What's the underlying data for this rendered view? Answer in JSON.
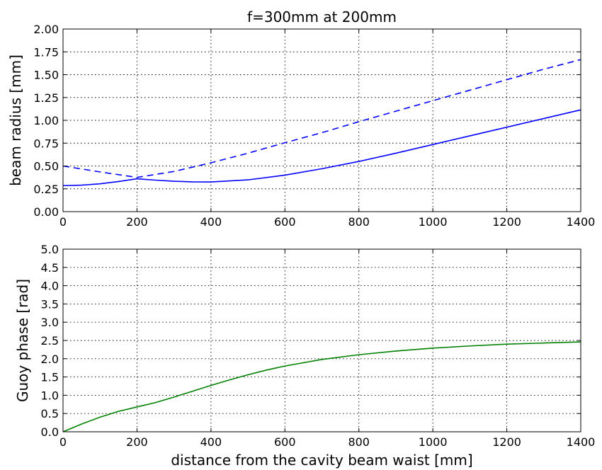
{
  "chart_data": [
    {
      "type": "line",
      "title": "f=300mm at 200mm",
      "xlabel": "",
      "ylabel": "beam radius [mm]",
      "xlim": [
        0,
        1400
      ],
      "ylim": [
        0,
        2.0
      ],
      "grid": true,
      "xticks": [
        "0",
        "200",
        "400",
        "600",
        "800",
        "1000",
        "1200",
        "1400"
      ],
      "yticks": [
        "0.00",
        "0.25",
        "0.50",
        "0.75",
        "1.00",
        "1.25",
        "1.50",
        "1.75",
        "2.00"
      ],
      "series": [
        {
          "style": "solid",
          "color": "#0000ff",
          "x": [
            0,
            50,
            100,
            150,
            200,
            250,
            300,
            350,
            400,
            500,
            600,
            700,
            800,
            900,
            1000,
            1100,
            1200,
            1300,
            1400
          ],
          "y": [
            0.285,
            0.29,
            0.305,
            0.33,
            0.36,
            0.345,
            0.333,
            0.326,
            0.325,
            0.348,
            0.4,
            0.47,
            0.55,
            0.64,
            0.735,
            0.83,
            0.925,
            1.02,
            1.115
          ]
        },
        {
          "style": "dashed",
          "color": "#0000ff",
          "x": [
            0,
            100,
            200,
            300,
            400,
            500,
            600,
            700,
            800,
            900,
            1000,
            1100,
            1200,
            1300,
            1400
          ],
          "y": [
            0.5,
            0.435,
            0.375,
            0.44,
            0.535,
            0.64,
            0.755,
            0.865,
            0.985,
            1.1,
            1.215,
            1.33,
            1.445,
            1.56,
            1.665
          ]
        }
      ]
    },
    {
      "type": "line",
      "title": "",
      "xlabel": "distance from the cavity beam waist [mm]",
      "ylabel": "Guoy phase [rad]",
      "xlim": [
        0,
        1400
      ],
      "ylim": [
        0,
        5.0
      ],
      "grid": true,
      "xticks": [
        "0",
        "200",
        "400",
        "600",
        "800",
        "1000",
        "1200",
        "1400"
      ],
      "yticks": [
        "0.0",
        "0.5",
        "1.0",
        "1.5",
        "2.0",
        "2.5",
        "3.0",
        "3.5",
        "4.0",
        "4.5",
        "5.0"
      ],
      "series": [
        {
          "style": "solid",
          "color": "#008000",
          "x": [
            0,
            50,
            100,
            150,
            200,
            250,
            300,
            350,
            400,
            450,
            500,
            550,
            600,
            700,
            800,
            900,
            1000,
            1100,
            1200,
            1300,
            1400
          ],
          "y": [
            0.0,
            0.21,
            0.4,
            0.56,
            0.68,
            0.8,
            0.95,
            1.11,
            1.27,
            1.42,
            1.56,
            1.69,
            1.8,
            1.98,
            2.11,
            2.21,
            2.29,
            2.35,
            2.4,
            2.43,
            2.46
          ]
        }
      ]
    }
  ]
}
